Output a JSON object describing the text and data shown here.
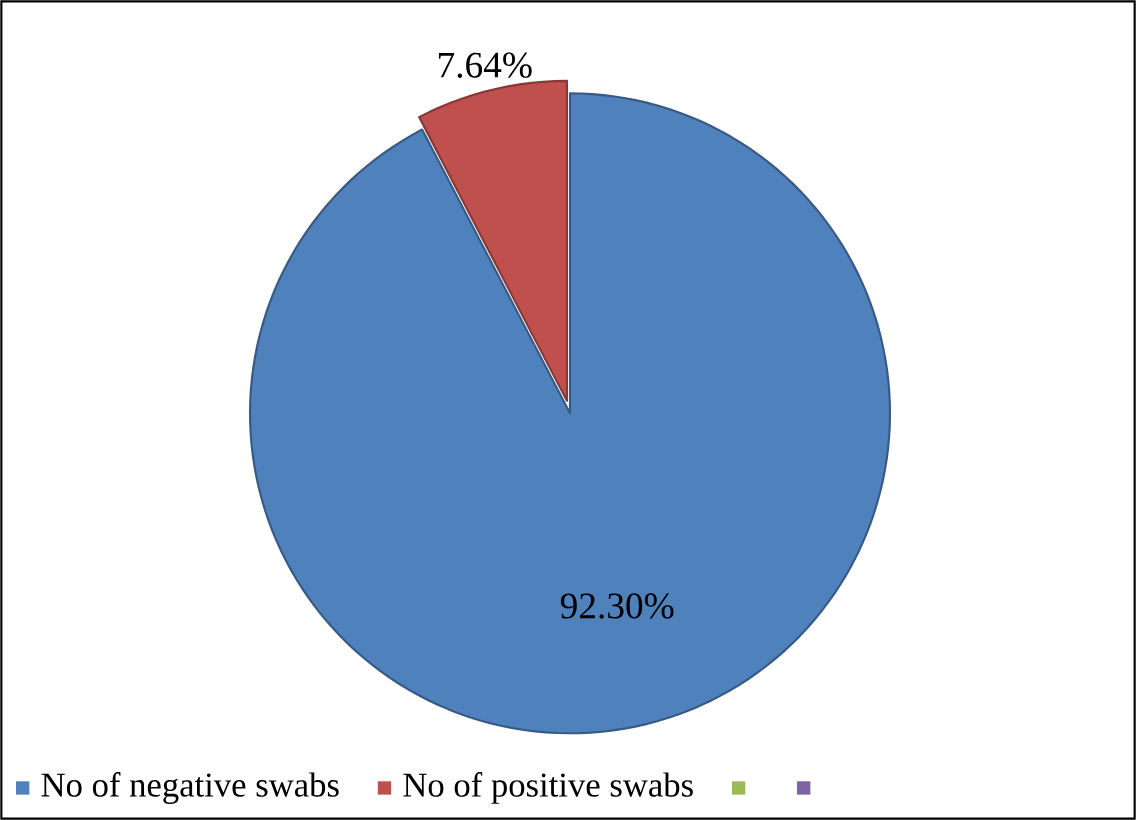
{
  "chart_data": {
    "type": "pie",
    "categories": [
      "No of negative swabs",
      "No of positive swabs",
      null,
      null
    ],
    "values": [
      92.3,
      7.64,
      0,
      0
    ],
    "value_labels": [
      "92.30%",
      "7.64%",
      null,
      null
    ],
    "colors": [
      "#4f81bd",
      "#c0504d",
      "#9bbb59",
      "#8064a2"
    ],
    "legend": "bottom"
  }
}
